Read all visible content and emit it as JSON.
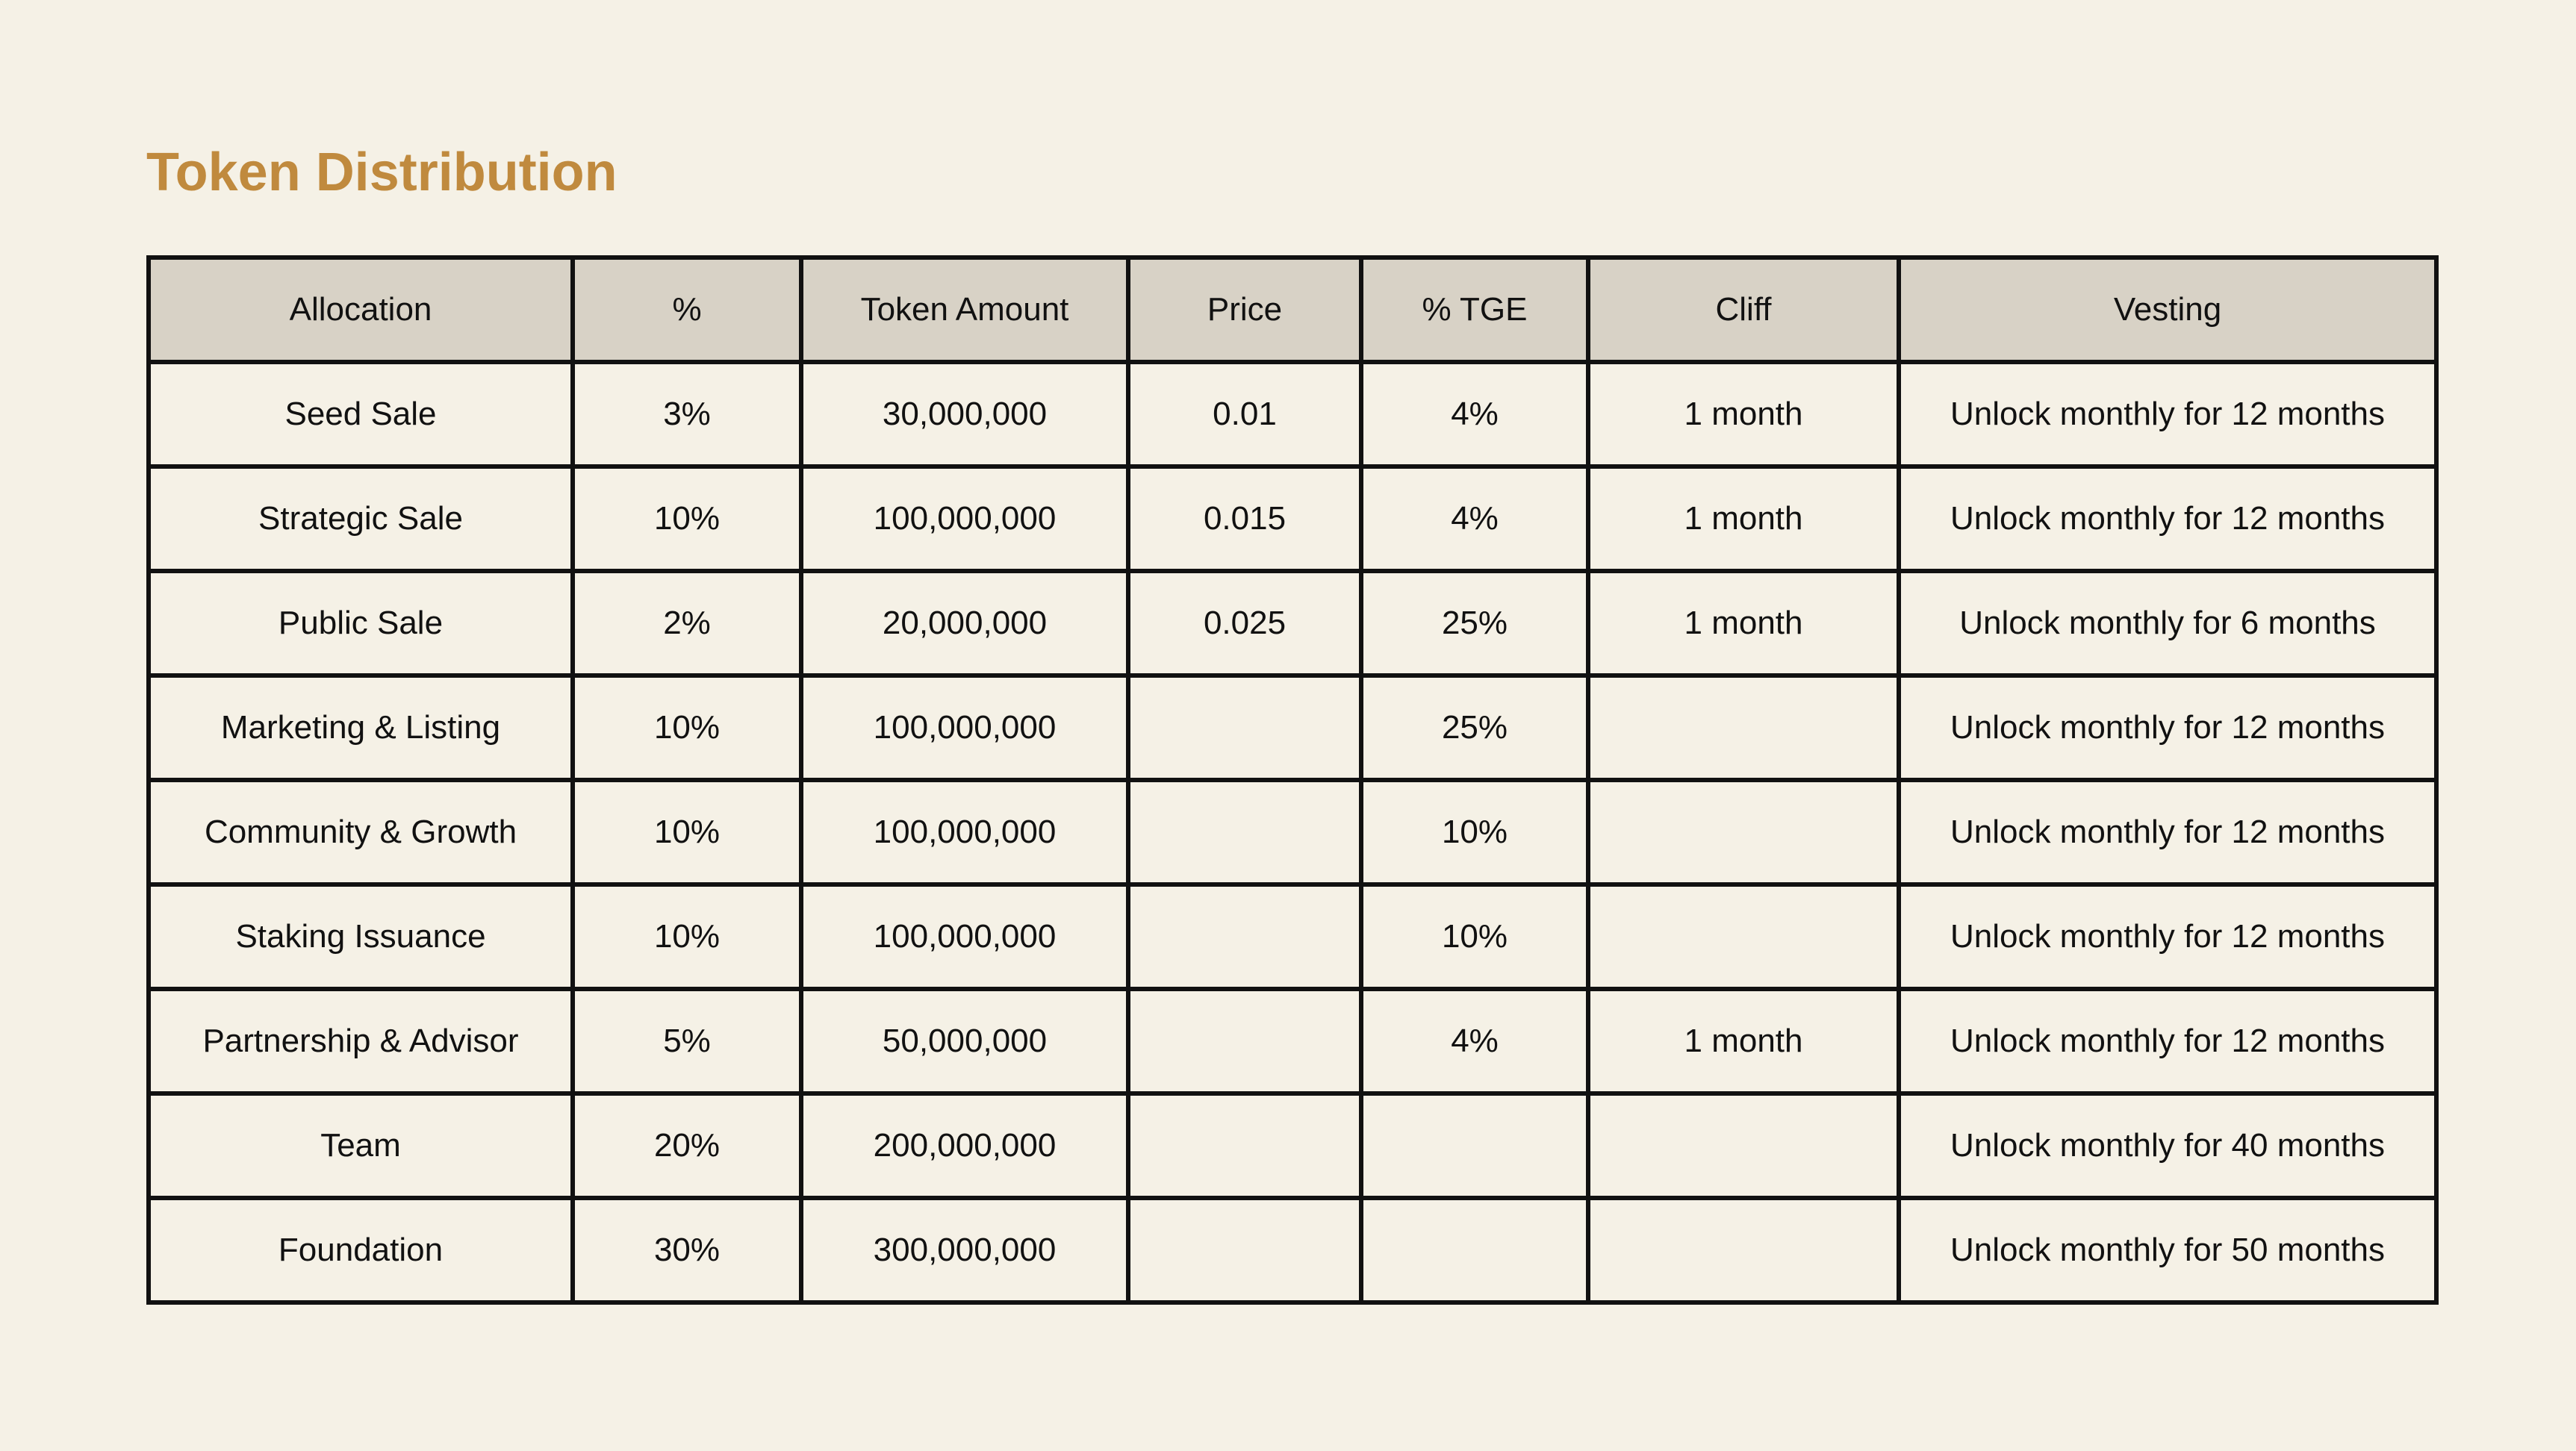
{
  "title": "Token Distribution",
  "table": {
    "headers": [
      "Allocation",
      "%",
      "Token Amount",
      "Price",
      "% TGE",
      "Cliff",
      "Vesting"
    ],
    "rows": [
      [
        "Seed Sale",
        "3%",
        "30,000,000",
        "0.01",
        "4%",
        "1 month",
        "Unlock monthly for 12 months"
      ],
      [
        "Strategic Sale",
        "10%",
        "100,000,000",
        "0.015",
        "4%",
        "1 month",
        "Unlock monthly for 12 months"
      ],
      [
        "Public Sale",
        "2%",
        "20,000,000",
        "0.025",
        "25%",
        "1 month",
        "Unlock monthly for 6 months"
      ],
      [
        "Marketing & Listing",
        "10%",
        "100,000,000",
        "",
        "25%",
        "",
        "Unlock monthly for 12 months"
      ],
      [
        "Community & Growth",
        "10%",
        "100,000,000",
        "",
        "10%",
        "",
        "Unlock monthly for 12 months"
      ],
      [
        "Staking Issuance",
        "10%",
        "100,000,000",
        "",
        "10%",
        "",
        "Unlock monthly for 12 months"
      ],
      [
        "Partnership & Advisor",
        "5%",
        "50,000,000",
        "",
        "4%",
        "1 month",
        "Unlock monthly for 12 months"
      ],
      [
        "Team",
        "20%",
        "200,000,000",
        "",
        "",
        "",
        "Unlock monthly for 40 months"
      ],
      [
        "Foundation",
        "30%",
        "300,000,000",
        "",
        "",
        "",
        "Unlock monthly for 50 months"
      ]
    ]
  },
  "colors": {
    "background": "#f5f1e6",
    "title": "#c08a3e",
    "header_background": "#d8d2c6",
    "border": "#111111",
    "text": "#111111"
  }
}
